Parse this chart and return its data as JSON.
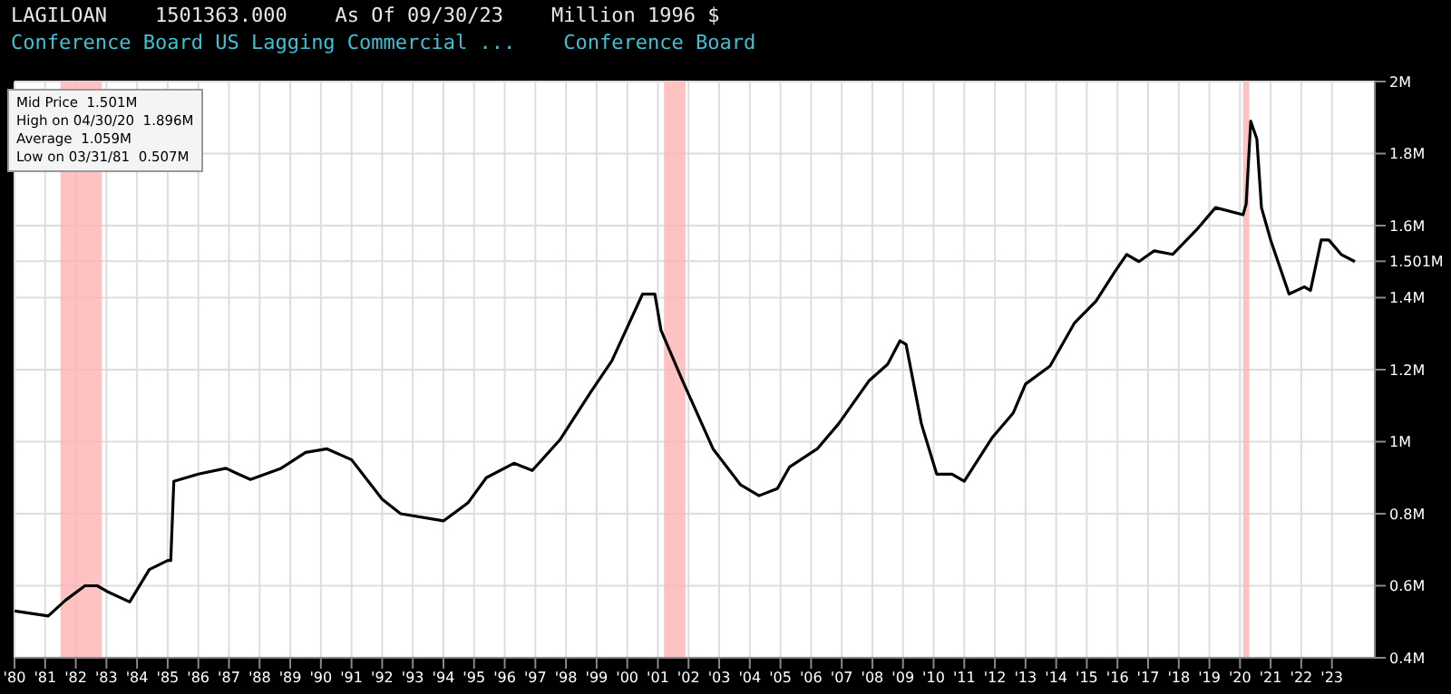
{
  "chart_data": {
    "type": "line",
    "title": "LAGILOAN    1501363.000    As Of 09/30/23    Million 1996 $",
    "subtitle": "Conference Board US Lagging Commercial ...    Conference Board",
    "annotations": [
      "Mid Price  1.501M",
      "High on 04/30/20  1.896M",
      "Average  1.059M",
      "Low on 03/31/81  0.507M"
    ],
    "series": [
      {
        "color": "#000000",
        "x": [
          1980,
          1981.1,
          1981.67,
          1982.3,
          1982.7,
          1983.0,
          1983.76,
          1984.4,
          1985.0,
          1985.1,
          1985.2,
          1986.0,
          1986.9,
          1987.7,
          1988.7,
          1989.5,
          1990.2,
          1991.0,
          1992.0,
          1992.6,
          1994.0,
          1994.8,
          1995.4,
          1996.3,
          1996.9,
          1997.8,
          1998.8,
          1999.5,
          2000.5,
          2000.9,
          2001.1,
          2001.8,
          2002.8,
          2003.7,
          2004.3,
          2004.9,
          2005.3,
          2006.2,
          2006.9,
          2007.9,
          2008.5,
          2008.9,
          2009.1,
          2009.6,
          2010.1,
          2010.6,
          2011.0,
          2011.9,
          2012.6,
          2013.0,
          2013.8,
          2014.6,
          2015.3,
          2015.9,
          2016.3,
          2016.7,
          2017.2,
          2017.8,
          2018.6,
          2019.2,
          2020.1,
          2020.2,
          2020.35,
          2020.55,
          2020.7,
          2021.0,
          2021.6,
          2022.1,
          2022.3,
          2022.65,
          2022.9,
          2023.3,
          2023.75
        ],
        "values": [
          0.53,
          0.516,
          0.56,
          0.6,
          0.6,
          0.585,
          0.555,
          0.645,
          0.67,
          0.67,
          0.89,
          0.91,
          0.926,
          0.895,
          0.926,
          0.97,
          0.98,
          0.95,
          0.84,
          0.8,
          0.78,
          0.83,
          0.9,
          0.94,
          0.92,
          1.005,
          1.137,
          1.225,
          1.41,
          1.41,
          1.31,
          1.17,
          0.98,
          0.88,
          0.85,
          0.87,
          0.93,
          0.98,
          1.05,
          1.17,
          1.215,
          1.28,
          1.27,
          1.05,
          0.91,
          0.91,
          0.89,
          1.01,
          1.08,
          1.16,
          1.21,
          1.33,
          1.39,
          1.47,
          1.52,
          1.5,
          1.53,
          1.52,
          1.59,
          1.65,
          1.63,
          1.66,
          1.89,
          1.84,
          1.65,
          1.56,
          1.41,
          1.43,
          1.42,
          1.56,
          1.56,
          1.52,
          1.5
        ]
      }
    ],
    "bands": [
      {
        "axis": "x",
        "from": 1981.5,
        "to": 1982.85,
        "color": "#ffb3b3"
      },
      {
        "axis": "x",
        "from": 2001.2,
        "to": 2001.9,
        "color": "#ffb3b3"
      },
      {
        "axis": "x",
        "from": 2020.1,
        "to": 2020.3,
        "color": "#ffb3b3"
      }
    ],
    "xlim": [
      1980,
      2024.4
    ],
    "xticks": [
      {
        "value": 1980,
        "label": "'80"
      },
      {
        "value": 1981,
        "label": "'81"
      },
      {
        "value": 1982,
        "label": "'82"
      },
      {
        "value": 1983,
        "label": "'83"
      },
      {
        "value": 1984,
        "label": "'84"
      },
      {
        "value": 1985,
        "label": "'85"
      },
      {
        "value": 1986,
        "label": "'86"
      },
      {
        "value": 1987,
        "label": "'87"
      },
      {
        "value": 1988,
        "label": "'88"
      },
      {
        "value": 1989,
        "label": "'89"
      },
      {
        "value": 1990,
        "label": "'90"
      },
      {
        "value": 1991,
        "label": "'91"
      },
      {
        "value": 1992,
        "label": "'92"
      },
      {
        "value": 1993,
        "label": "'93"
      },
      {
        "value": 1994,
        "label": "'94"
      },
      {
        "value": 1995,
        "label": "'95"
      },
      {
        "value": 1996,
        "label": "'96"
      },
      {
        "value": 1997,
        "label": "'97"
      },
      {
        "value": 1998,
        "label": "'98"
      },
      {
        "value": 1999,
        "label": "'99"
      },
      {
        "value": 2000,
        "label": "'00"
      },
      {
        "value": 2001,
        "label": "'01"
      },
      {
        "value": 2002,
        "label": "'02"
      },
      {
        "value": 2003,
        "label": "'03"
      },
      {
        "value": 2004,
        "label": "'04"
      },
      {
        "value": 2005,
        "label": "'05"
      },
      {
        "value": 2006,
        "label": "'06"
      },
      {
        "value": 2007,
        "label": "'07"
      },
      {
        "value": 2008,
        "label": "'08"
      },
      {
        "value": 2009,
        "label": "'09"
      },
      {
        "value": 2010,
        "label": "'10"
      },
      {
        "value": 2011,
        "label": "'11"
      },
      {
        "value": 2012,
        "label": "'12"
      },
      {
        "value": 2013,
        "label": "'13"
      },
      {
        "value": 2014,
        "label": "'14"
      },
      {
        "value": 2015,
        "label": "'15"
      },
      {
        "value": 2016,
        "label": "'16"
      },
      {
        "value": 2017,
        "label": "'17"
      },
      {
        "value": 2018,
        "label": "'18"
      },
      {
        "value": 2019,
        "label": "'19"
      },
      {
        "value": 2020,
        "label": "'20"
      },
      {
        "value": 2021,
        "label": "'21"
      },
      {
        "value": 2022,
        "label": "'22"
      },
      {
        "value": 2023,
        "label": "'23"
      }
    ],
    "ylim": [
      0.4,
      2
    ],
    "yticks": [
      {
        "value": 0.4,
        "label": "0.4M"
      },
      {
        "value": 0.6,
        "label": "0.6M"
      },
      {
        "value": 0.8,
        "label": "0.8M"
      },
      {
        "value": 1,
        "label": "1M"
      },
      {
        "value": 1.2,
        "label": "1.2M"
      },
      {
        "value": 1.4,
        "label": "1.4M"
      },
      {
        "value": 1.501,
        "label": "1.501M"
      },
      {
        "value": 1.6,
        "label": "1.6M"
      },
      {
        "value": 1.8,
        "label": "1.8M"
      },
      {
        "value": 2,
        "label": "2M"
      }
    ],
    "grid": true,
    "legend": false,
    "marker": "none",
    "line_style": "solid"
  }
}
